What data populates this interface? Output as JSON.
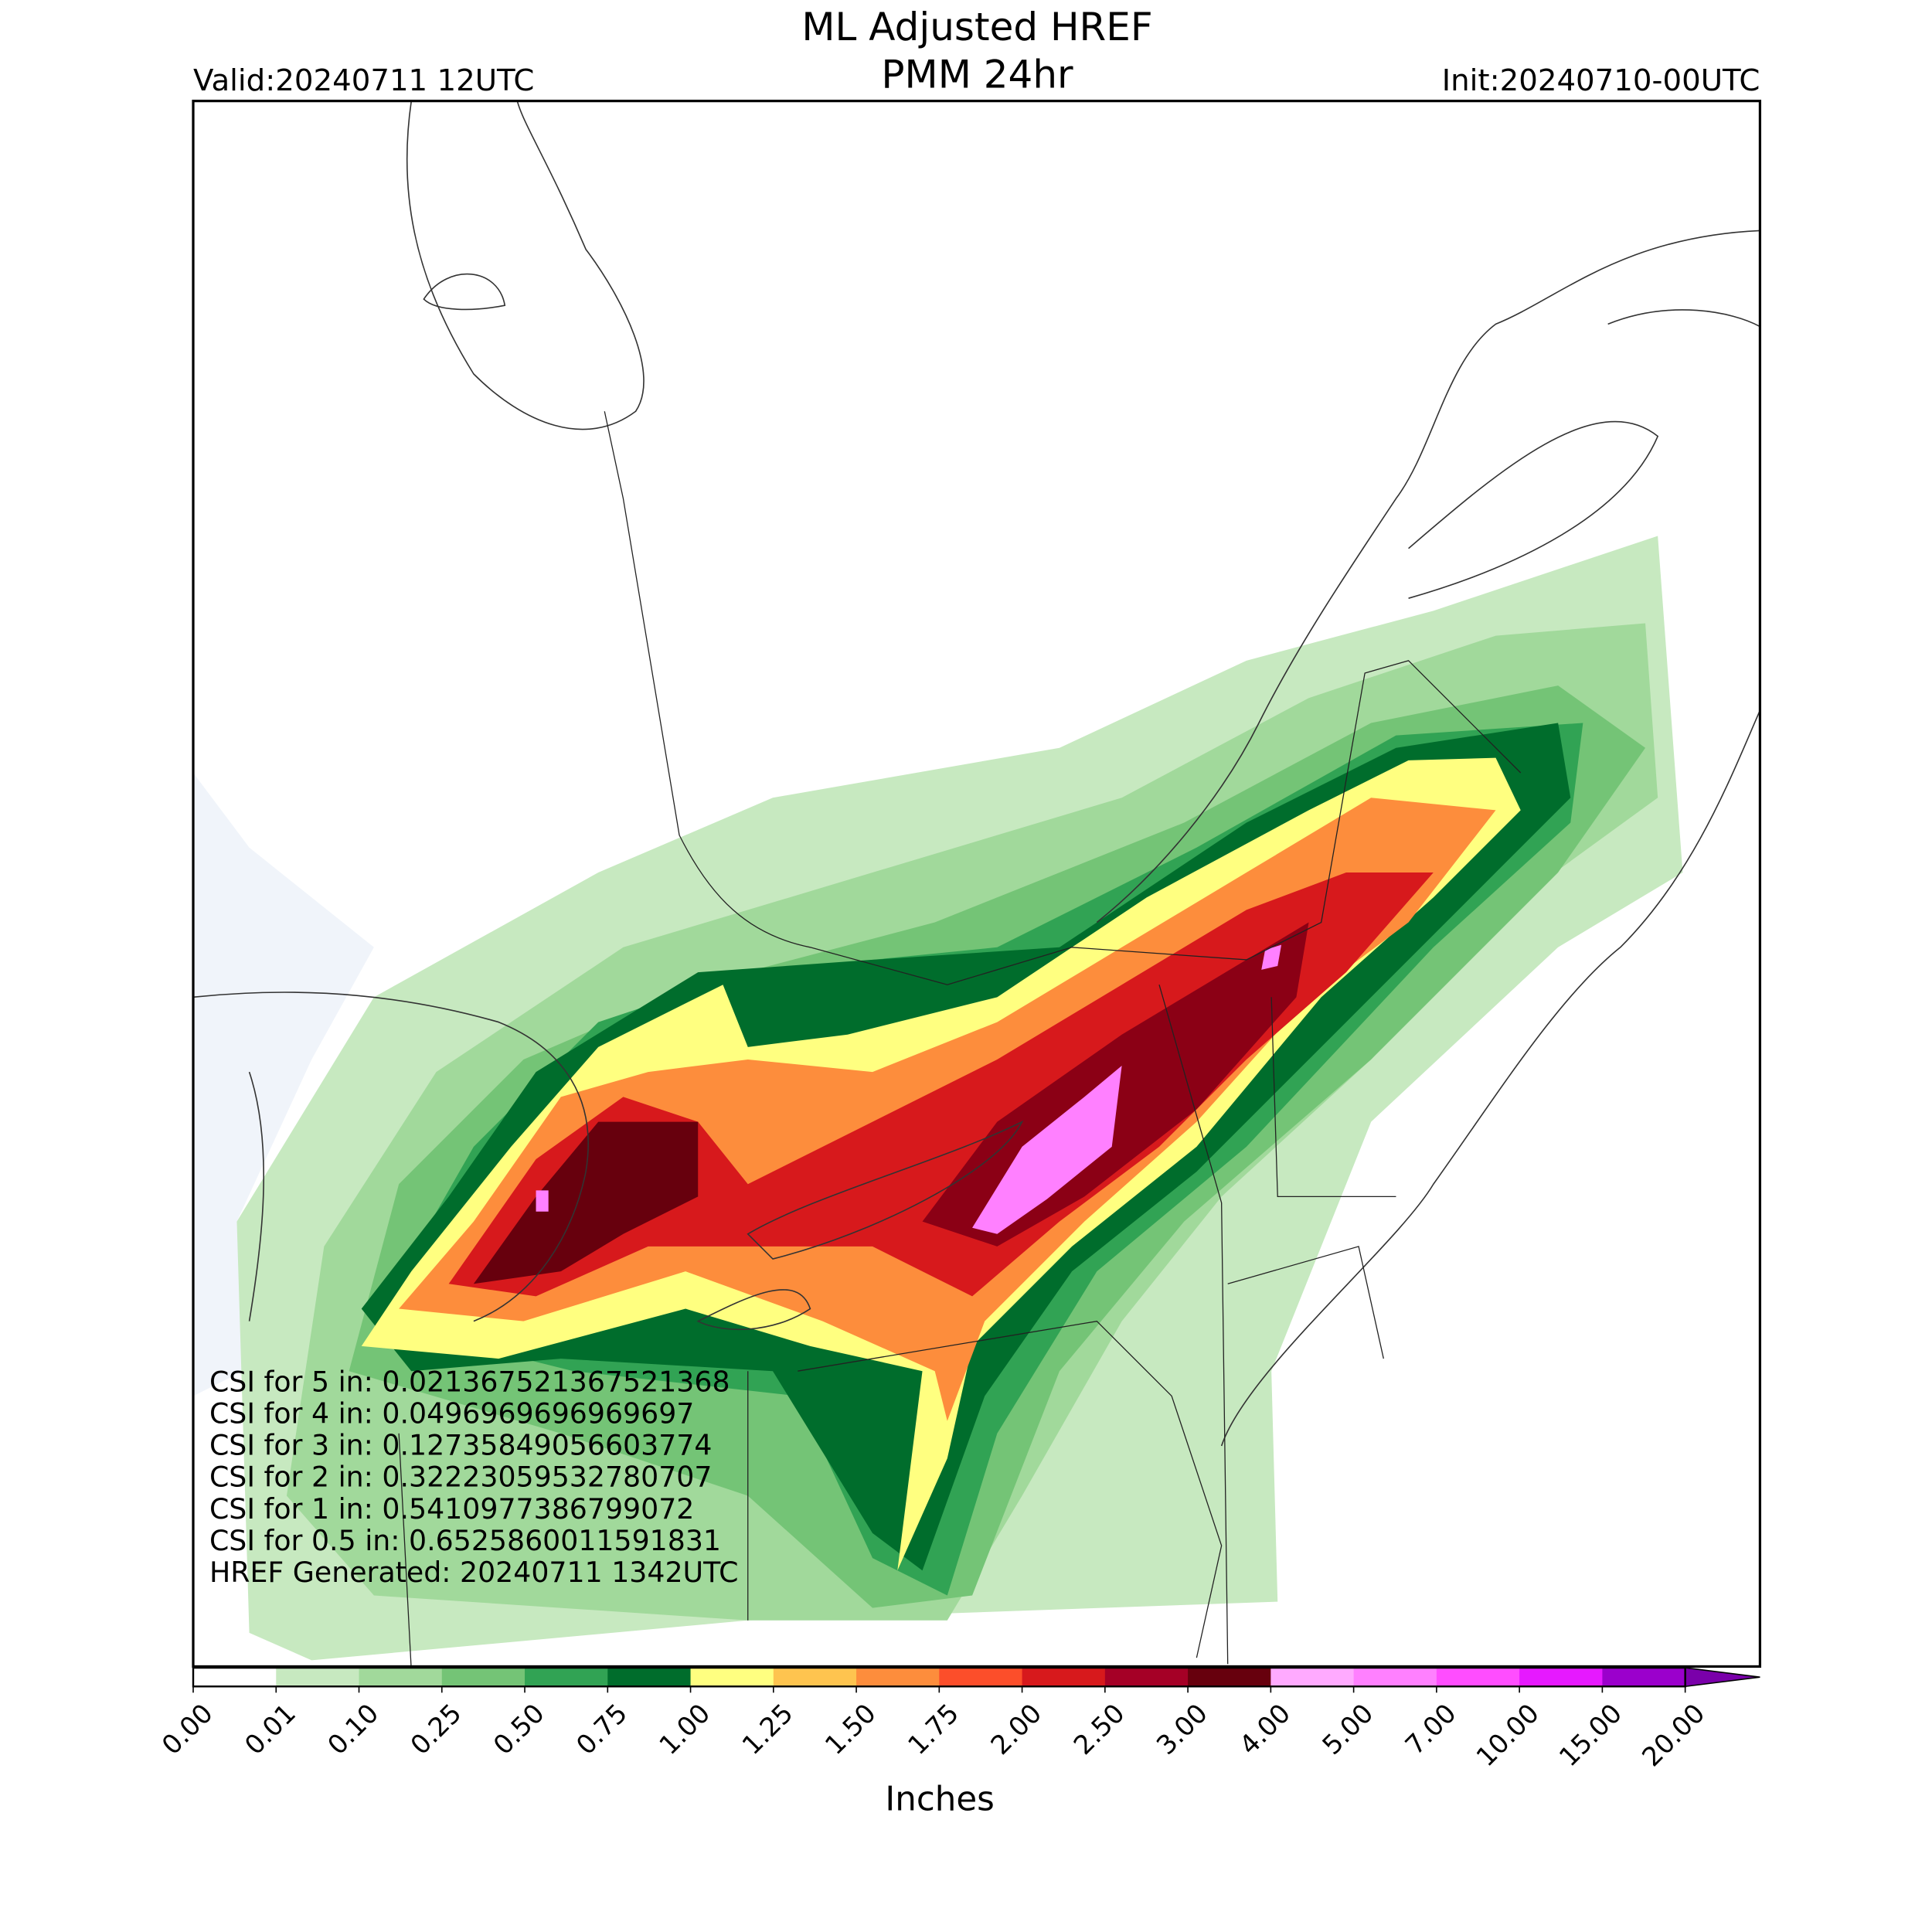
{
  "header": {
    "title_lines": [
      "ML Adjusted HREF",
      "PMM 24hr"
    ],
    "valid": "Valid:20240711 12UTC",
    "init": "Init:20240710-00UTC"
  },
  "map": {
    "annotations": [
      "CSI for 5 in: 0.021367521367521368",
      "CSI for 4 in: 0.0496969696969697",
      "CSI for 3 in: 0.12735849056603774",
      "CSI for 2 in: 0.32223059532780707",
      "CSI for 1 in: 0.5410977386799072",
      "CSI for 0.5 in: 0.6525860011591831",
      "HREF Generated: 20240711 1342UTC"
    ]
  },
  "colorbar": {
    "label": "Inches",
    "ticks": [
      {
        "value": 0,
        "label": "0.00"
      },
      {
        "value": 0.01,
        "label": "0.01"
      },
      {
        "value": 0.1,
        "label": "0.10"
      },
      {
        "value": 0.25,
        "label": "0.25"
      },
      {
        "value": 0.5,
        "label": "0.50"
      },
      {
        "value": 0.75,
        "label": "0.75"
      },
      {
        "value": 1,
        "label": "1.00"
      },
      {
        "value": 1.25,
        "label": "1.25"
      },
      {
        "value": 1.5,
        "label": "1.50"
      },
      {
        "value": 1.75,
        "label": "1.75"
      },
      {
        "value": 2,
        "label": "2.00"
      },
      {
        "value": 2.5,
        "label": "2.50"
      },
      {
        "value": 3,
        "label": "3.00"
      },
      {
        "value": 4,
        "label": "4.00"
      },
      {
        "value": 5,
        "label": "5.00"
      },
      {
        "value": 7,
        "label": "7.00"
      },
      {
        "value": 10,
        "label": "10.00"
      },
      {
        "value": 15,
        "label": "15.00"
      },
      {
        "value": 20,
        "label": "20.00"
      }
    ],
    "colors": [
      "#ffffff",
      "#c7e9c0",
      "#a1d99b",
      "#74c476",
      "#31a354",
      "#006d2c",
      "#ffff80",
      "#fec44f",
      "#fd8d3c",
      "#fc4e2a",
      "#d7191c",
      "#a50026",
      "#67000d",
      "#ffaaff",
      "#ff80ff",
      "#ff4dff",
      "#e619ff",
      "#9b00cc"
    ],
    "extend_color": "#7a00aa"
  }
}
